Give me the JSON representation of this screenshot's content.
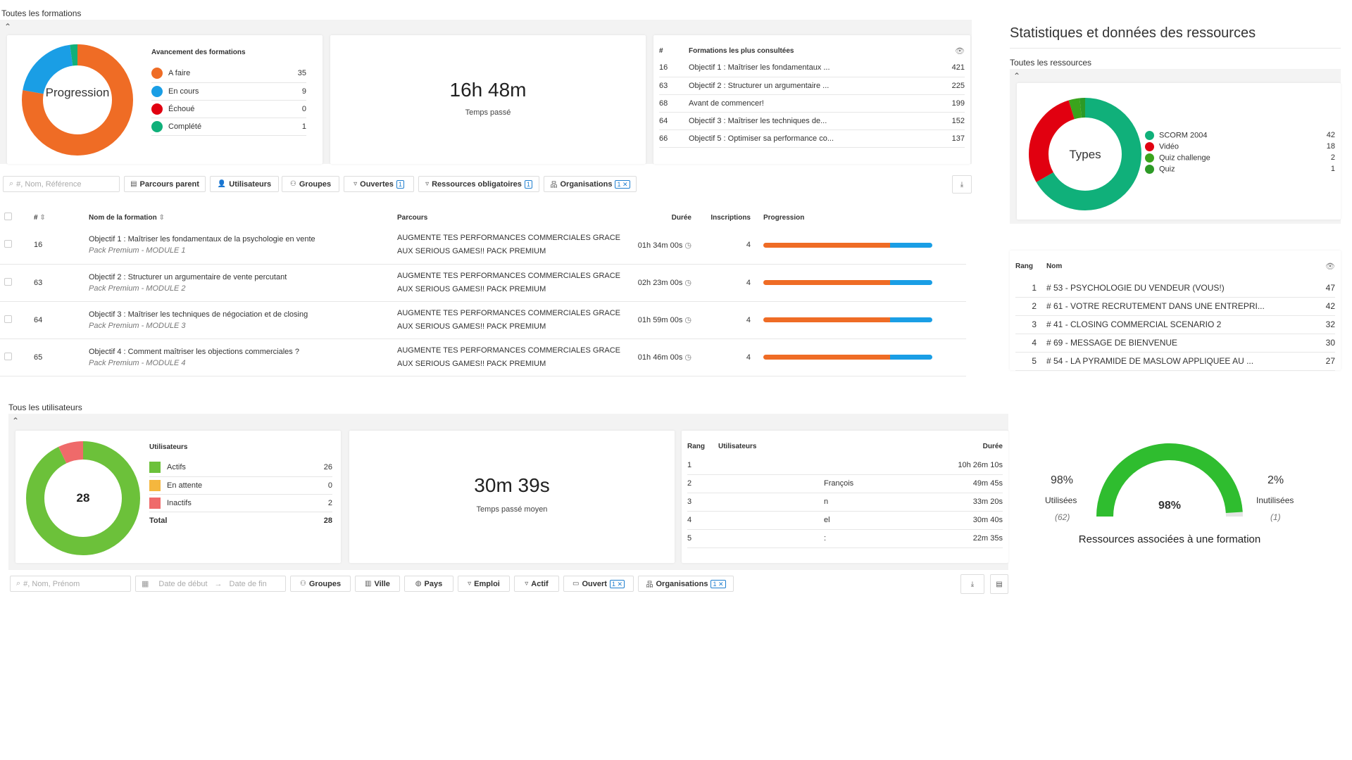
{
  "formations": {
    "title": "Toutes les formations",
    "progress_card": {
      "donut_label": "Progression",
      "legend_title": "Avancement des formations",
      "items": [
        {
          "label": "A faire",
          "value": "35",
          "color": "#ef6c25"
        },
        {
          "label": "En cours",
          "value": "9",
          "color": "#1a9ee5"
        },
        {
          "label": "Échoué",
          "value": "0",
          "color": "#e10010"
        },
        {
          "label": "Complété",
          "value": "1",
          "color": "#10b07a"
        }
      ]
    },
    "time_card": {
      "value": "16h 48m",
      "label": "Temps passé"
    },
    "most_viewed": {
      "col_num": "#",
      "col_title": "Formations les plus consultées",
      "rows": [
        {
          "id": "16",
          "name": "Objectif 1 : Maîtriser les fondamentaux ...",
          "count": "421"
        },
        {
          "id": "63",
          "name": "Objectif 2 : Structurer un argumentaire ...",
          "count": "225"
        },
        {
          "id": "68",
          "name": "Avant de commencer!",
          "count": "199"
        },
        {
          "id": "64",
          "name": "Objectif 3 : Maîtriser les techniques de...",
          "count": "152"
        },
        {
          "id": "66",
          "name": "Objectif 5 : Optimiser sa performance co...",
          "count": "137"
        }
      ]
    },
    "filters": {
      "search_placeholder": "#, Nom, Référence",
      "parcours_parent": "Parcours parent",
      "utilisateurs": "Utilisateurs",
      "groupes": "Groupes",
      "ouvertes": "Ouvertes",
      "ouvertes_badge": "1",
      "ressources": "Ressources obligatoires",
      "ressources_badge": "1",
      "organisations": "Organisations",
      "organisations_badge": "1 ✕"
    },
    "table": {
      "col_num": "#",
      "col_name": "Nom de la formation",
      "col_parcours": "Parcours",
      "col_duree": "Durée",
      "col_inscriptions": "Inscriptions",
      "col_progression": "Progression",
      "rows": [
        {
          "id": "16",
          "name": "Objectif 1 : Maîtriser les fondamentaux de la psychologie en vente",
          "sub": "Pack Premium - MODULE 1",
          "parcours1": "AUGMENTE TES PERFORMANCES COMMERCIALES GRACE",
          "parcours2": "AUX SERIOUS GAMES!! PACK PREMIUM",
          "duree": "01h 34m 00s",
          "inscriptions": "4",
          "progress_orange": 0.75,
          "progress_blue": 0.25
        },
        {
          "id": "63",
          "name": "Objectif 2 : Structurer un argumentaire de vente percutant",
          "sub": "Pack Premium - MODULE 2",
          "parcours1": "AUGMENTE TES PERFORMANCES COMMERCIALES GRACE",
          "parcours2": "AUX SERIOUS GAMES!! PACK PREMIUM",
          "duree": "02h 23m 00s",
          "inscriptions": "4",
          "progress_orange": 0.75,
          "progress_blue": 0.25
        },
        {
          "id": "64",
          "name": "Objectif 3 : Maîtriser les techniques de négociation et de closing",
          "sub": "Pack Premium - MODULE 3",
          "parcours1": "AUGMENTE TES PERFORMANCES COMMERCIALES GRACE",
          "parcours2": "AUX SERIOUS GAMES!! PACK PREMIUM",
          "duree": "01h 59m 00s",
          "inscriptions": "4",
          "progress_orange": 0.75,
          "progress_blue": 0.25
        },
        {
          "id": "65",
          "name": "Objectif 4 : Comment maîtriser les objections commerciales ?",
          "sub": "Pack Premium - MODULE 4",
          "parcours1": "AUGMENTE TES PERFORMANCES COMMERCIALES GRACE",
          "parcours2": "AUX SERIOUS GAMES!! PACK PREMIUM",
          "duree": "01h 46m 00s",
          "inscriptions": "4",
          "progress_orange": 0.75,
          "progress_blue": 0.25
        }
      ]
    }
  },
  "ressources": {
    "title": "Statistiques et données des ressources",
    "subtitle": "Toutes les ressources",
    "donut_label": "Types",
    "types": [
      {
        "label": "SCORM 2004",
        "value": "42",
        "color": "#10b07a"
      },
      {
        "label": "Vidéo",
        "value": "18",
        "color": "#e10010"
      },
      {
        "label": "Quiz challenge",
        "value": "2",
        "color": "#3aa41c"
      },
      {
        "label": "Quiz",
        "value": "1",
        "color": "#2c9a26"
      }
    ],
    "ranking": {
      "col_rank": "Rang",
      "col_name": "Nom",
      "rows": [
        {
          "rank": "1",
          "name": "# 53 - PSYCHOLOGIE DU VENDEUR (VOUS!)",
          "count": "47"
        },
        {
          "rank": "2",
          "name": "# 61 - VOTRE RECRUTEMENT DANS UNE ENTREPRI...",
          "count": "42"
        },
        {
          "rank": "3",
          "name": "# 41 - CLOSING COMMERCIAL SCENARIO 2",
          "count": "32"
        },
        {
          "rank": "4",
          "name": "# 69 - MESSAGE DE BIENVENUE",
          "count": "30"
        },
        {
          "rank": "5",
          "name": "# 54 - LA PYRAMIDE DE MASLOW APPLIQUEE AU ...",
          "count": "27"
        }
      ]
    },
    "gauge": {
      "used_pct": "98%",
      "used_label": "Utilisées",
      "used_count": "(62)",
      "unused_pct": "2%",
      "unused_label": "Inutilisées",
      "unused_count": "(1)",
      "center": "98%",
      "fraction": 0.98,
      "caption": "Ressources associées à une formation"
    }
  },
  "utilisateurs": {
    "title": "Tous les utilisateurs",
    "donut_center": "28",
    "legend_title": "Utilisateurs",
    "items": [
      {
        "label": "Actifs",
        "value": "26",
        "color": "#6cc13a"
      },
      {
        "label": "En attente",
        "value": "0",
        "color": "#f5b73e"
      },
      {
        "label": "Inactifs",
        "value": "2",
        "color": "#ef6a6a"
      }
    ],
    "total_label": "Total",
    "total_value": "28",
    "time_card": {
      "value": "30m 39s",
      "label": "Temps passé moyen"
    },
    "ranking": {
      "col_rank": "Rang",
      "col_users": "Utilisateurs",
      "col_duree": "Durée",
      "rows": [
        {
          "rank": "1",
          "name": "",
          "duree": "10h 26m 10s"
        },
        {
          "rank": "2",
          "name": "François",
          "duree": "49m 45s"
        },
        {
          "rank": "3",
          "name": "n",
          "duree": "33m 20s"
        },
        {
          "rank": "4",
          "name": "el",
          "duree": "30m 40s"
        },
        {
          "rank": "5",
          "name": ":",
          "duree": "22m 35s"
        }
      ]
    },
    "filters": {
      "search_placeholder": "#, Nom, Prénom",
      "date_start": "Date de début",
      "date_end": "Date de fin",
      "groupes": "Groupes",
      "ville": "Ville",
      "pays": "Pays",
      "emploi": "Emploi",
      "actif": "Actif",
      "ouvert": "Ouvert",
      "ouvert_badge": "1 ✕",
      "organisations": "Organisations",
      "organisations_badge": "1 ✕"
    }
  }
}
